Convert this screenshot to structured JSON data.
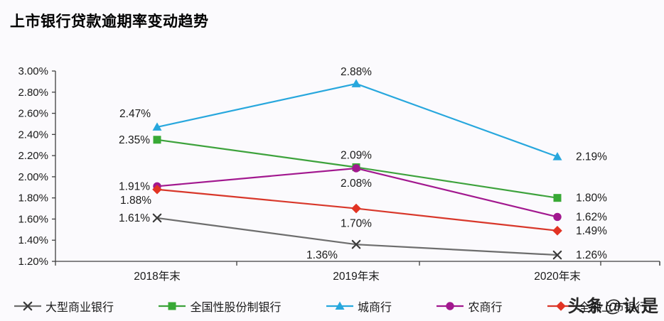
{
  "title": "上市银行贷款逾期率变动趋势",
  "watermark": "头条@认是",
  "colors": {
    "background": "#fbfafd",
    "axis": "#3f3f3f",
    "label_text": "#1a1a1a"
  },
  "chart_data": {
    "type": "line",
    "title": "上市银行贷款逾期率变动趋势",
    "categories": [
      "2018年末",
      "2019年末",
      "2020年末"
    ],
    "series": [
      {
        "id": "large-commercial-banks",
        "name": "大型商业银行",
        "values": [
          1.61,
          1.36,
          1.26
        ],
        "labels": [
          "1.61%",
          "1.36%",
          "1.26%"
        ],
        "label_pos": [
          "left",
          "below-left",
          "right"
        ],
        "color": "#6d6d6d",
        "marker": "x",
        "marker_color": "#3a3a3a"
      },
      {
        "id": "national-joint-stock-banks",
        "name": "全国性股份制银行",
        "values": [
          2.35,
          2.09,
          1.8
        ],
        "labels": [
          "2.35%",
          "2.09%",
          "1.80%"
        ],
        "label_pos": [
          "left",
          "above",
          "right"
        ],
        "color": "#3da23c",
        "marker": "square",
        "marker_color": "#38a935"
      },
      {
        "id": "city-commercial-banks",
        "name": "城商行",
        "values": [
          2.47,
          2.88,
          2.19
        ],
        "labels": [
          "2.47%",
          "2.88%",
          "2.19%"
        ],
        "label_pos": [
          "left-up",
          "above",
          "right"
        ],
        "color": "#27a7dd",
        "marker": "triangle",
        "marker_color": "#27a7dd"
      },
      {
        "id": "rural-commercial-banks",
        "name": "农商行",
        "values": [
          1.91,
          2.08,
          1.62
        ],
        "labels": [
          "1.91%",
          "2.08%",
          "1.62%"
        ],
        "label_pos": [
          "left",
          "below",
          "right"
        ],
        "color": "#a2188f",
        "marker": "circle",
        "marker_color": "#a2188f"
      },
      {
        "id": "all-listed-banks",
        "name": "全部上市银行",
        "values": [
          1.88,
          1.7,
          1.49
        ],
        "labels": [
          "1.88%",
          "1.70%",
          "1.49%"
        ],
        "label_pos": [
          "left-down",
          "below",
          "right"
        ],
        "color": "#d8372a",
        "marker": "diamond",
        "marker_color": "#e23323"
      }
    ],
    "xlabel": "",
    "ylabel": "",
    "ylim": [
      1.2,
      3.0
    ],
    "y_ticks": [
      "3.00%",
      "2.80%",
      "2.60%",
      "2.40%",
      "2.20%",
      "2.00%",
      "1.80%",
      "1.60%",
      "1.40%",
      "1.20%"
    ],
    "grid": false,
    "legend_position": "bottom"
  }
}
